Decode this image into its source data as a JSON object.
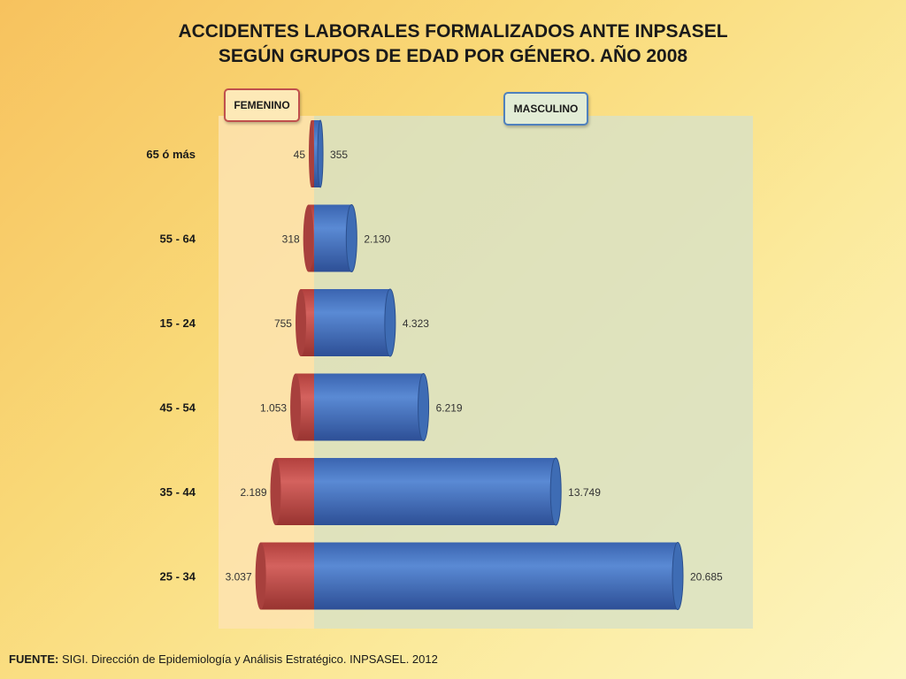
{
  "title_line1": "ACCIDENTES LABORALES FORMALIZADOS ANTE INPSASEL",
  "title_line2": "SEGÚN GRUPOS DE EDAD POR GÉNERO. AÑO 2008",
  "legend": {
    "femenino": "FEMENINO",
    "masculino": "MASCULINO"
  },
  "footer": {
    "label": "FUENTE:",
    "text": "SIGI. Dirección de Epidemiología y Análisis Estratégico. INPSASEL. 2012"
  },
  "colors": {
    "femenino": "#c0504d",
    "masculino": "#4f81bd",
    "panel_femenino": "#fde3b0",
    "panel_masculino": "#d9e2c4"
  },
  "chart_data": {
    "type": "bar",
    "orientation": "horizontal-diverging",
    "categories": [
      "65 ó más",
      "55 - 64",
      "15 - 24",
      "45 - 54",
      "35 - 44",
      "25 - 34"
    ],
    "series": [
      {
        "name": "FEMENINO",
        "values": [
          45,
          318,
          755,
          1053,
          2189,
          3037
        ],
        "labels": [
          "45",
          "318",
          "755",
          "1.053",
          "2.189",
          "3.037"
        ]
      },
      {
        "name": "MASCULINO",
        "values": [
          355,
          2130,
          4323,
          6219,
          13749,
          20685
        ],
        "labels": [
          "355",
          "2.130",
          "4.323",
          "6.219",
          "13.749",
          "20.685"
        ]
      }
    ],
    "legend_position": "top",
    "grid": false
  }
}
